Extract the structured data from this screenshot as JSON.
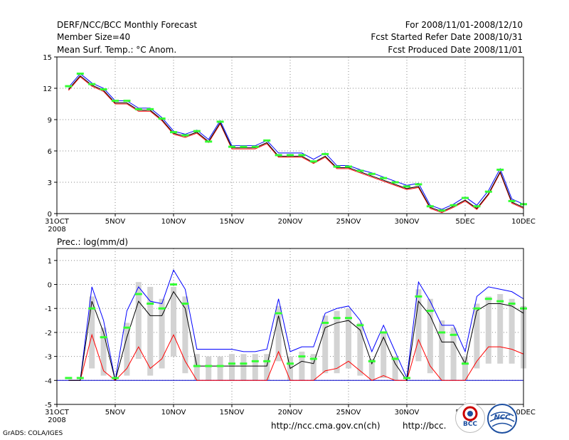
{
  "header": {
    "title": "DERF/NCC/BCC Monthly Forecast",
    "member_size": "Member Size=40",
    "variable": "Mean Surf. Temp.: °C Anom.",
    "forecast_period": "For 2008/11/01-2008/12/10",
    "started_refer": "Fcst Started Refer Date 2008/10/31",
    "produced": "Fcst Produced Date 2008/11/01"
  },
  "footer": {
    "grads": "GrADS: COLA/IGES",
    "url1": "http://ncc.cma.gov.cn(ch)",
    "url2": "http://bcc.",
    "logo_bcc": "BCC",
    "logo_ncc": "NCC"
  },
  "colors": {
    "mean_line": "#000000",
    "upper_line": "#0000ff",
    "lower_line": "#ff0000",
    "marker": "#33ff33",
    "bar": "#d3d3d3",
    "baseline": "#0000cc"
  },
  "chart_data": [
    {
      "type": "line",
      "title": "Mean Surf. Temp.: °C Anom.",
      "x_labels": [
        "31OCT",
        "5NOV",
        "10NOV",
        "15NOV",
        "20NOV",
        "25NOV",
        "30NOV",
        "5DEC",
        "10DEC"
      ],
      "x_label_days": [
        0,
        5,
        10,
        15,
        20,
        25,
        30,
        35,
        40
      ],
      "year_label": "2008",
      "ylim": [
        0,
        15
      ],
      "yticks": [
        0,
        3,
        6,
        9,
        12,
        15
      ],
      "days": [
        1,
        2,
        3,
        4,
        5,
        6,
        7,
        8,
        9,
        10,
        11,
        12,
        13,
        14,
        15,
        16,
        17,
        18,
        19,
        20,
        21,
        22,
        23,
        24,
        25,
        26,
        27,
        28,
        29,
        30,
        31,
        32,
        33,
        34,
        35,
        36,
        37,
        38,
        39,
        40
      ],
      "series": [
        {
          "name": "mean",
          "color": "#000000",
          "values": [
            11.9,
            13.2,
            12.3,
            11.8,
            10.6,
            10.6,
            9.9,
            9.9,
            9.0,
            7.7,
            7.4,
            7.8,
            6.9,
            8.7,
            6.3,
            6.3,
            6.3,
            6.8,
            5.5,
            5.5,
            5.5,
            4.9,
            5.5,
            4.4,
            4.4,
            4.0,
            3.6,
            3.2,
            2.8,
            2.4,
            2.6,
            0.6,
            0.2,
            0.7,
            1.3,
            0.5,
            1.9,
            4.0,
            1.1,
            0.6
          ]
        },
        {
          "name": "upper",
          "color": "#0000ff",
          "values": [
            12.1,
            13.4,
            12.5,
            12.0,
            10.8,
            10.8,
            10.1,
            10.1,
            9.2,
            7.9,
            7.6,
            8.0,
            7.1,
            8.9,
            6.5,
            6.5,
            6.5,
            7.0,
            5.8,
            5.8,
            5.8,
            5.2,
            5.8,
            4.6,
            4.6,
            4.2,
            3.9,
            3.5,
            3.1,
            2.7,
            2.9,
            0.8,
            0.4,
            0.9,
            1.6,
            0.8,
            2.2,
            4.3,
            1.4,
            0.9
          ]
        },
        {
          "name": "lower",
          "color": "#ff0000",
          "values": [
            11.8,
            13.1,
            12.2,
            11.7,
            10.5,
            10.5,
            9.8,
            9.8,
            8.9,
            7.6,
            7.3,
            7.7,
            6.8,
            8.6,
            6.2,
            6.2,
            6.2,
            6.7,
            5.4,
            5.4,
            5.4,
            4.8,
            5.4,
            4.3,
            4.3,
            3.9,
            3.5,
            3.1,
            2.7,
            2.3,
            2.5,
            0.5,
            0.1,
            0.6,
            1.2,
            0.4,
            1.8,
            3.9,
            1.0,
            0.5
          ]
        },
        {
          "name": "marker",
          "color": "#33ff33",
          "values": [
            12.2,
            13.4,
            12.4,
            11.9,
            10.8,
            10.8,
            10.0,
            10.0,
            9.1,
            7.8,
            7.5,
            7.9,
            6.9,
            8.8,
            6.4,
            6.4,
            6.4,
            7.0,
            5.6,
            5.6,
            5.6,
            5.0,
            5.7,
            4.5,
            4.5,
            4.1,
            3.8,
            3.4,
            3.0,
            2.6,
            2.8,
            0.7,
            0.3,
            0.8,
            1.5,
            0.7,
            2.1,
            4.2,
            1.2,
            0.9
          ]
        }
      ]
    },
    {
      "type": "line",
      "title": "Prec.: log(mm/d)",
      "x_labels": [
        "31OCT",
        "5NOV",
        "10NOV",
        "15NOV",
        "20NOV",
        "25NOV",
        "30NOV",
        "5DEC",
        "10DEC"
      ],
      "x_label_days": [
        0,
        5,
        10,
        15,
        20,
        25,
        30,
        35,
        40
      ],
      "year_label": "2008",
      "ylim": [
        -5,
        1.5
      ],
      "yticks": [
        -5,
        -4,
        -3,
        -2,
        -1,
        0,
        1
      ],
      "days": [
        1,
        2,
        3,
        4,
        5,
        6,
        7,
        8,
        9,
        10,
        11,
        12,
        13,
        14,
        15,
        16,
        17,
        18,
        19,
        20,
        21,
        22,
        23,
        24,
        25,
        26,
        27,
        28,
        29,
        30,
        31,
        32,
        33,
        34,
        35,
        36,
        37,
        38,
        39,
        40
      ],
      "series": [
        {
          "name": "mean",
          "color": "#000000",
          "values": [
            -4,
            -4,
            -0.7,
            -2.0,
            -4.0,
            -2.2,
            -0.7,
            -1.3,
            -1.3,
            -0.3,
            -1.0,
            -3.4,
            -3.4,
            -3.4,
            -3.4,
            -3.4,
            -3.4,
            -3.4,
            -1.3,
            -3.5,
            -3.2,
            -3.3,
            -1.8,
            -1.6,
            -1.5,
            -1.9,
            -3.3,
            -2.2,
            -3.3,
            -4.0,
            -0.7,
            -1.3,
            -2.4,
            -2.4,
            -3.3,
            -1.1,
            -0.8,
            -0.8,
            -0.9,
            -1.2
          ]
        },
        {
          "name": "upper",
          "color": "#0000ff",
          "values": [
            -4,
            -4,
            -0.1,
            -1.5,
            -4.0,
            -1.1,
            -0.1,
            -0.7,
            -0.8,
            0.6,
            -0.2,
            -2.7,
            -2.7,
            -2.7,
            -2.7,
            -2.8,
            -2.8,
            -2.7,
            -0.6,
            -2.8,
            -2.6,
            -2.6,
            -1.2,
            -1.0,
            -0.9,
            -1.5,
            -2.8,
            -1.7,
            -2.8,
            -3.9,
            0.1,
            -0.7,
            -1.7,
            -1.7,
            -2.8,
            -0.5,
            -0.1,
            -0.2,
            -0.3,
            -0.6
          ]
        },
        {
          "name": "lower",
          "color": "#ff0000",
          "values": [
            -4,
            -4,
            -2.1,
            -3.6,
            -4.0,
            -3.5,
            -2.6,
            -3.5,
            -3.1,
            -2.1,
            -3.2,
            -4.0,
            -4.0,
            -4.0,
            -4.0,
            -4.0,
            -4.0,
            -4.0,
            -2.8,
            -4.0,
            -4.0,
            -4.0,
            -3.6,
            -3.5,
            -3.2,
            -3.6,
            -4.0,
            -3.8,
            -4.0,
            -4.0,
            -2.3,
            -3.4,
            -4.0,
            -4.0,
            -4.0,
            -3.2,
            -2.6,
            -2.6,
            -2.7,
            -2.9
          ]
        },
        {
          "name": "bar_top",
          "color": "#d3d3d3",
          "values": [
            -4,
            -4,
            -0.5,
            -1.8,
            -4.0,
            -1.6,
            0.1,
            -0.1,
            -0.6,
            -0.1,
            -0.5,
            -2.9,
            -3.0,
            -3.0,
            -2.9,
            -2.9,
            -2.9,
            -2.9,
            -0.9,
            -3.0,
            -2.8,
            -2.9,
            -1.3,
            -1.1,
            -1.0,
            -1.6,
            -3.1,
            -2.0,
            -3.0,
            -4.0,
            -0.2,
            -0.6,
            -1.5,
            -1.8,
            -3.0,
            -0.8,
            -0.5,
            -0.4,
            -0.6,
            -0.9
          ]
        },
        {
          "name": "bar_bottom",
          "color": "#d3d3d3",
          "values": [
            -4,
            -4,
            -3.5,
            -3.8,
            -4.0,
            -3.8,
            -3.1,
            -3.8,
            -3.5,
            -3.0,
            -3.7,
            -4.0,
            -4.0,
            -4.0,
            -4.0,
            -4.0,
            -4.0,
            -4.0,
            -3.2,
            -4.0,
            -4.0,
            -4.0,
            -3.7,
            -3.7,
            -3.5,
            -3.8,
            -4.0,
            -3.9,
            -4.0,
            -4.0,
            -3.2,
            -3.7,
            -4.0,
            -4.0,
            -4.0,
            -3.5,
            -3.3,
            -3.3,
            -3.3,
            -3.5
          ]
        },
        {
          "name": "marker",
          "color": "#33ff33",
          "values": [
            -3.9,
            -3.9,
            -1.0,
            -2.2,
            -3.9,
            -1.8,
            -0.4,
            -0.8,
            -1.0,
            0.0,
            -0.8,
            -3.4,
            -3.4,
            -3.4,
            -3.3,
            -3.3,
            -3.2,
            -3.2,
            -1.2,
            -3.3,
            -3.0,
            -3.1,
            -1.6,
            -1.4,
            -1.4,
            -1.7,
            -3.2,
            -2.0,
            -3.1,
            -3.9,
            -0.5,
            -1.1,
            -2.0,
            -2.1,
            -3.3,
            -1.0,
            -0.6,
            -0.7,
            -0.8,
            -1.0
          ]
        }
      ],
      "baseline": -4
    }
  ]
}
